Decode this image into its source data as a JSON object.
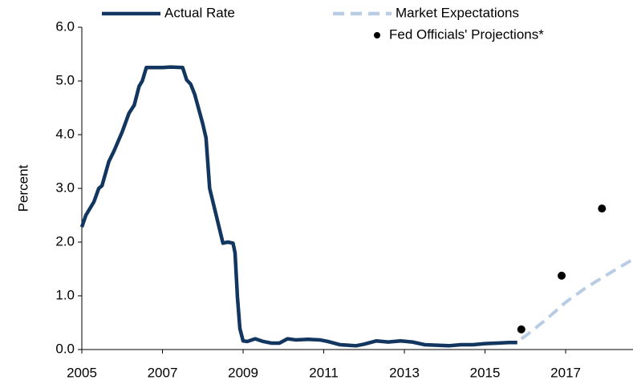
{
  "chart_data": {
    "type": "line",
    "ylabel": "Percent",
    "xlim": [
      2005,
      2018.67
    ],
    "ylim": [
      0,
      6
    ],
    "xticks": [
      2005,
      2007,
      2009,
      2011,
      2013,
      2015,
      2017
    ],
    "yticks": [
      {
        "value": 0,
        "label": "0.0"
      },
      {
        "value": 1,
        "label": "1.0"
      },
      {
        "value": 2,
        "label": "2.0"
      },
      {
        "value": 3,
        "label": "3.0"
      },
      {
        "value": 4,
        "label": "4.0"
      },
      {
        "value": 5,
        "label": "5.0"
      },
      {
        "value": 6,
        "label": "6.0"
      }
    ],
    "series": [
      {
        "name": "Actual Rate",
        "type": "line",
        "color": "#12365f",
        "dashed": false,
        "x": [
          2005.0,
          2005.1,
          2005.3,
          2005.42,
          2005.5,
          2005.67,
          2005.8,
          2006.0,
          2006.17,
          2006.3,
          2006.42,
          2006.5,
          2006.6,
          2006.8,
          2007.0,
          2007.2,
          2007.5,
          2007.6,
          2007.7,
          2007.8,
          2008.0,
          2008.08,
          2008.17,
          2008.3,
          2008.5,
          2008.62,
          2008.75,
          2008.8,
          2008.86,
          2008.92,
          2009.0,
          2009.1,
          2009.3,
          2009.5,
          2009.7,
          2009.9,
          2010.1,
          2010.3,
          2010.6,
          2010.9,
          2011.1,
          2011.4,
          2011.6,
          2011.8,
          2012.0,
          2012.3,
          2012.6,
          2012.9,
          2013.2,
          2013.5,
          2013.8,
          2014.1,
          2014.4,
          2014.7,
          2015.0,
          2015.3,
          2015.6,
          2015.8
        ],
        "values": [
          2.28,
          2.5,
          2.75,
          3.0,
          3.05,
          3.5,
          3.7,
          4.05,
          4.4,
          4.55,
          4.9,
          5.0,
          5.25,
          5.25,
          5.25,
          5.26,
          5.25,
          5.02,
          4.94,
          4.75,
          4.2,
          3.94,
          3.0,
          2.6,
          1.98,
          2.0,
          1.98,
          1.8,
          0.97,
          0.39,
          0.16,
          0.15,
          0.2,
          0.15,
          0.12,
          0.12,
          0.2,
          0.18,
          0.19,
          0.18,
          0.15,
          0.09,
          0.08,
          0.07,
          0.1,
          0.16,
          0.14,
          0.16,
          0.14,
          0.09,
          0.08,
          0.07,
          0.09,
          0.09,
          0.11,
          0.12,
          0.13,
          0.13
        ]
      },
      {
        "name": "Market Expectations",
        "type": "line",
        "color": "#b8cce4",
        "dashed": true,
        "x": [
          2015.9,
          2016.0,
          2016.5,
          2017.0,
          2017.5,
          2018.0,
          2018.67
        ],
        "values": [
          0.2,
          0.25,
          0.55,
          0.88,
          1.15,
          1.38,
          1.68
        ]
      },
      {
        "name": "Fed Officials' Projections*",
        "type": "scatter",
        "color": "#000000",
        "x": [
          2015.9,
          2016.9,
          2017.9
        ],
        "values": [
          0.375,
          1.375,
          2.625
        ]
      }
    ]
  }
}
